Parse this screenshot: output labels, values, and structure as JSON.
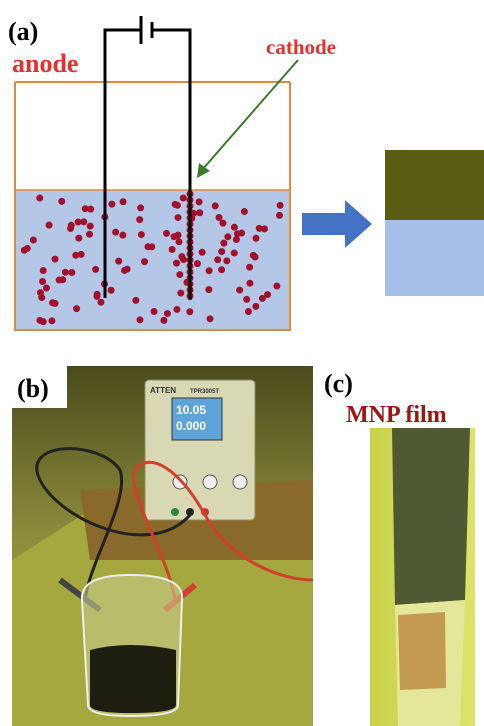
{
  "panel_a": {
    "label": "(a)",
    "anode": "anode",
    "cathode": "cathode"
  },
  "panel_b": {
    "label": "(b)",
    "brand": "ATTEN",
    "model": "TPR3005T",
    "voltage": "10.05",
    "current": "0.000"
  },
  "panel_c": {
    "label": "(c)",
    "caption": "MNP film"
  }
}
